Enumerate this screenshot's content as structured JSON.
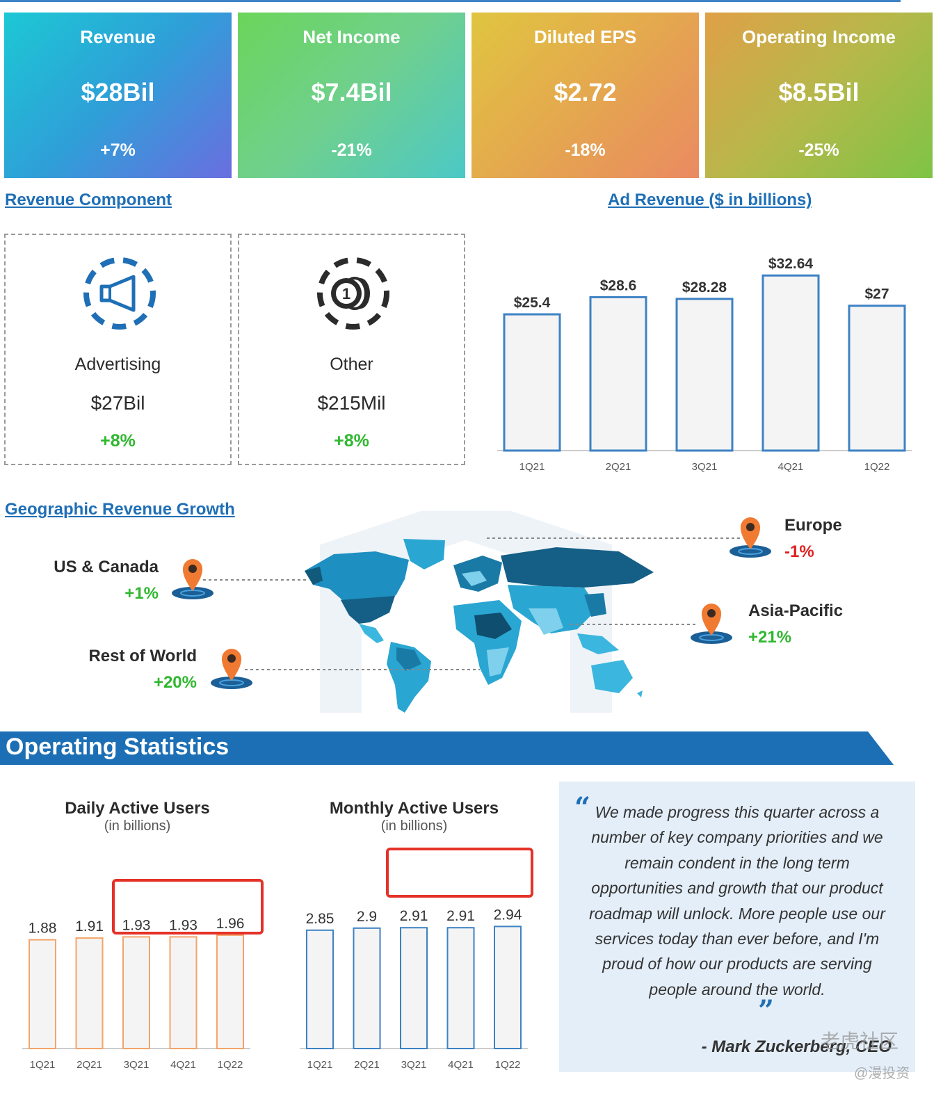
{
  "kpis": [
    {
      "label": "Revenue",
      "value": "$28Bil",
      "change": "+7%"
    },
    {
      "label": "Net Income",
      "value": "$7.4Bil",
      "change": "-21%"
    },
    {
      "label": "Diluted EPS",
      "value": "$2.72",
      "change": "-18%"
    },
    {
      "label": "Operating Income",
      "value": "$8.5Bil",
      "change": "-25%"
    }
  ],
  "revenue_component": {
    "title": "Revenue Component",
    "items": [
      {
        "name": "Advertising",
        "value": "$27Bil",
        "change": "+8%",
        "icon": "megaphone-icon"
      },
      {
        "name": "Other",
        "value": "$215Mil",
        "change": "+8%",
        "icon": "coins-icon"
      }
    ]
  },
  "geo": {
    "title": "Geographic Revenue Growth",
    "regions": [
      {
        "name": "US & Canada",
        "change": "+1%"
      },
      {
        "name": "Rest of World",
        "change": "+20%"
      },
      {
        "name": "Europe",
        "change": "-1%"
      },
      {
        "name": "Asia-Pacific",
        "change": "+21%"
      }
    ]
  },
  "operating_statistics": {
    "title": "Operating Statistics",
    "dau": {
      "title": "Daily Active Users",
      "subtitle": "(in billions)"
    },
    "mau": {
      "title": "Monthly Active Users",
      "subtitle": "(in billions)"
    }
  },
  "quote": {
    "text": "We made progress this quarter across a number of key company priorities and we remain condent in the long term opportunities and growth that our product roadmap will unlock. More people use our services today than ever before, and I'm proud of how our products are serving people around the world.",
    "author": "- Mark Zuckerberg, CEO"
  },
  "watermark": {
    "line1": "老虎社区",
    "line2": "@漫投资"
  },
  "colors": {
    "accent_blue": "#1f6fb6",
    "positive": "#2fb82f",
    "negative": "#e02020",
    "ad_bar_stroke": "#3d82c4",
    "dau_bar_stroke": "#f4a46a",
    "mau_bar_stroke": "#3d82c4",
    "highlight": "#e53228"
  },
  "chart_data": [
    {
      "type": "bar",
      "title": "Ad Revenue ($ in billions)",
      "categories": [
        "1Q21",
        "2Q21",
        "3Q21",
        "4Q21",
        "1Q22"
      ],
      "values": [
        25.4,
        28.6,
        28.28,
        32.64,
        27
      ],
      "labels": [
        "$25.4",
        "$28.6",
        "$28.28",
        "$32.64",
        "$27"
      ],
      "xlabel": "",
      "ylabel": "",
      "ylim": [
        0,
        35
      ]
    },
    {
      "type": "bar",
      "title": "Daily Active Users",
      "categories": [
        "1Q21",
        "2Q21",
        "3Q21",
        "4Q21",
        "1Q22"
      ],
      "values": [
        1.88,
        1.91,
        1.93,
        1.93,
        1.96
      ],
      "labels": [
        "1.88",
        "1.91",
        "1.93",
        "1.93",
        "1.96"
      ],
      "xlabel": "",
      "ylabel": "",
      "ylim": [
        0,
        2.5
      ]
    },
    {
      "type": "bar",
      "title": "Monthly Active Users",
      "categories": [
        "1Q21",
        "2Q21",
        "3Q21",
        "4Q21",
        "1Q22"
      ],
      "values": [
        2.85,
        2.9,
        2.91,
        2.91,
        2.94
      ],
      "labels": [
        "2.85",
        "2.9",
        "2.91",
        "2.91",
        "2.94"
      ],
      "xlabel": "",
      "ylabel": "",
      "ylim": [
        0,
        3.6
      ]
    }
  ]
}
